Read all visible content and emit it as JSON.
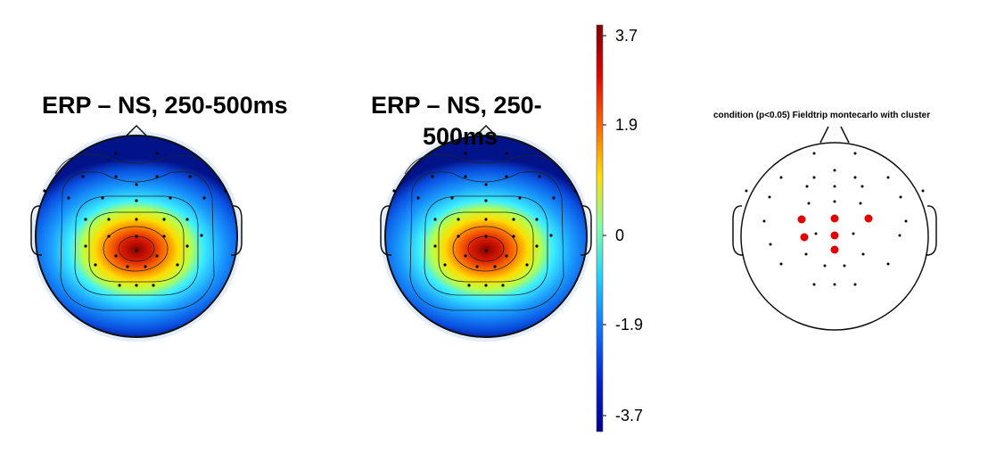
{
  "panels": [
    {
      "title": "ERP – NS, 250-500ms"
    },
    {
      "title_line1": "ERP – NS, 250-",
      "title_line2": "500ms"
    },
    {
      "title": "condition (p<0.05) Fieldtrip montecarlo with cluster"
    }
  ],
  "colorbar": {
    "ticks": [
      "3.7",
      "1.9",
      "0",
      "-1.9",
      "-3.7"
    ],
    "colormap": "jet",
    "colors": [
      "#7f0000",
      "#ff0000",
      "#ff7f00",
      "#ffff00",
      "#7fffff",
      "#00bfff",
      "#0040ff",
      "#00008f"
    ]
  },
  "cluster_color": "#e00000"
}
